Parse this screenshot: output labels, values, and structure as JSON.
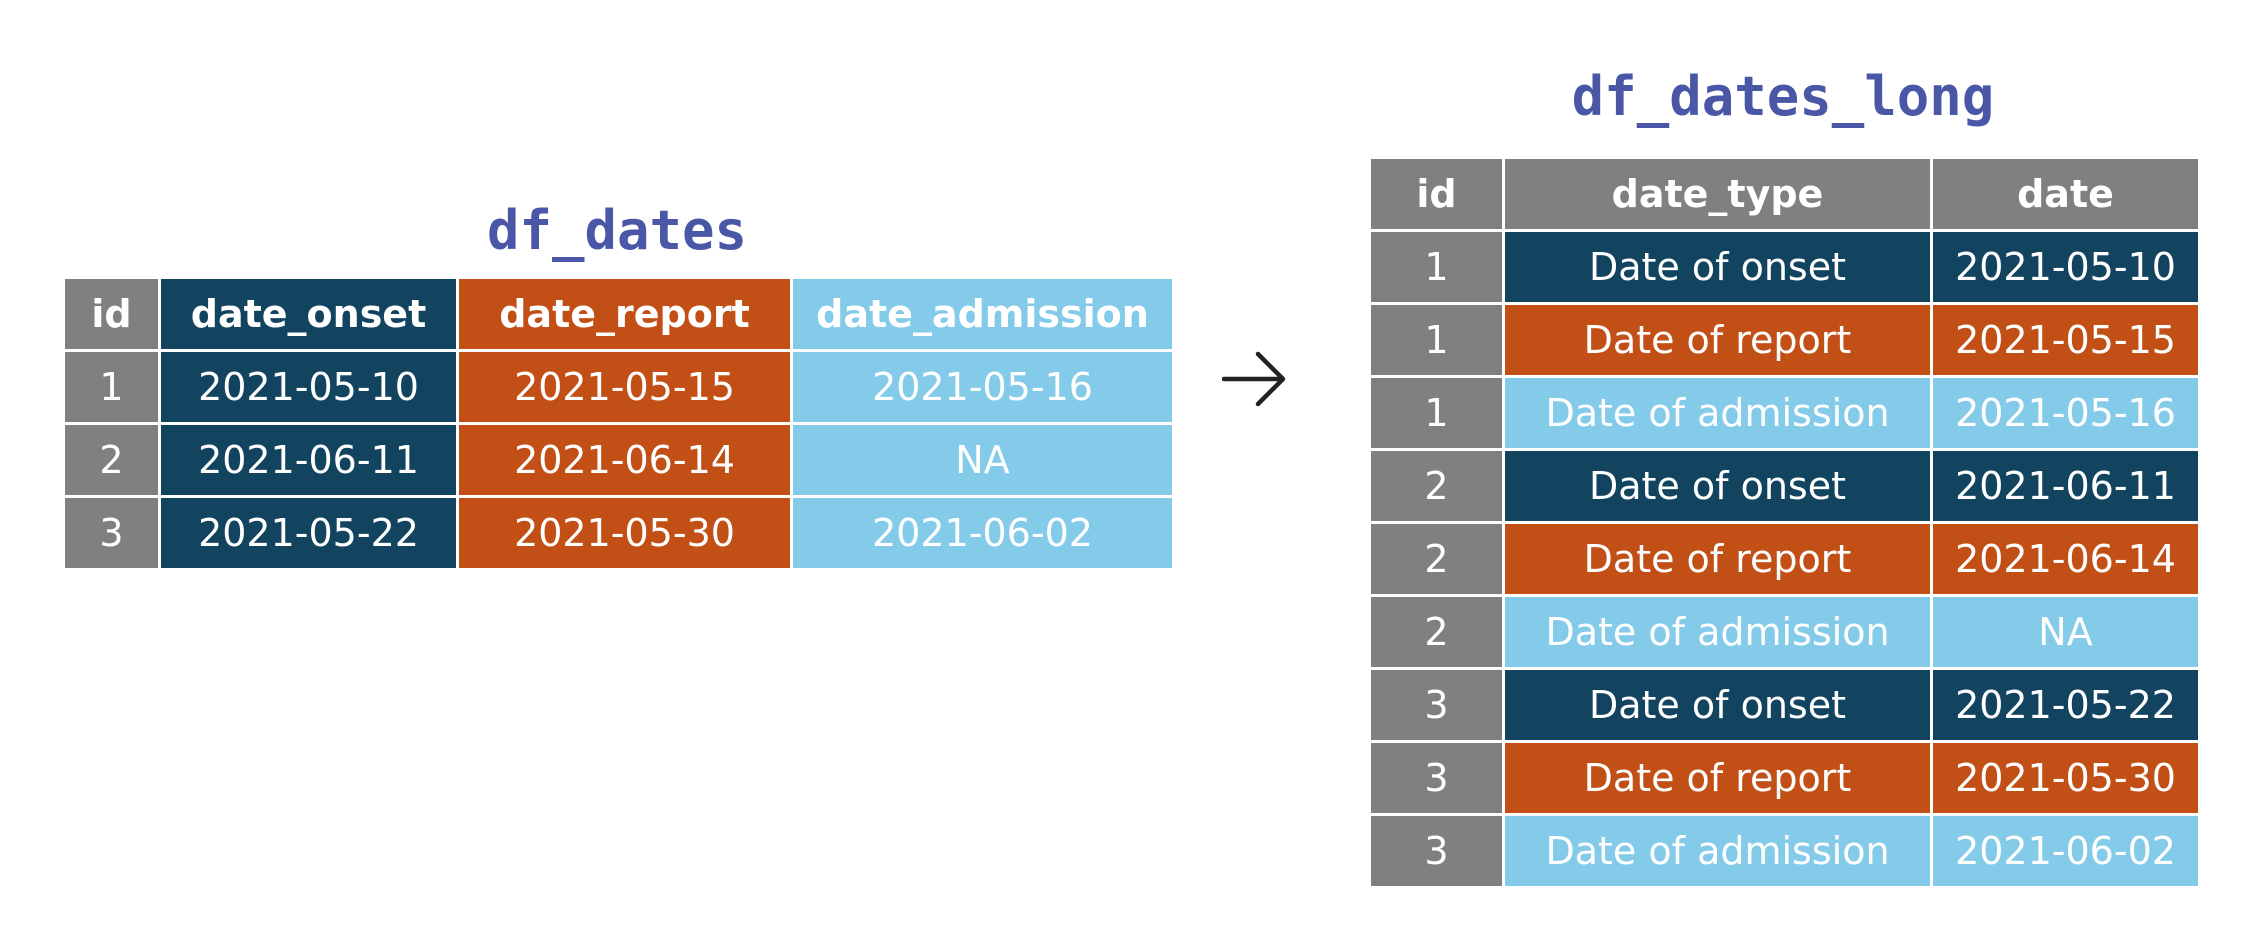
{
  "wide": {
    "title": "df_dates",
    "headers": {
      "id": "id",
      "onset": "date_onset",
      "report": "date_report",
      "admission": "date_admission"
    },
    "rows": [
      {
        "id": "1",
        "onset": "2021-05-10",
        "report": "2021-05-15",
        "admission": "2021-05-16"
      },
      {
        "id": "2",
        "onset": "2021-06-11",
        "report": "2021-06-14",
        "admission": "NA"
      },
      {
        "id": "3",
        "onset": "2021-05-22",
        "report": "2021-05-30",
        "admission": "2021-06-02"
      }
    ]
  },
  "long": {
    "title": "df_dates_long",
    "headers": {
      "id": "id",
      "date_type": "date_type",
      "date": "date"
    },
    "rows": [
      {
        "id": "1",
        "date_type": "Date of onset",
        "date": "2021-05-10"
      },
      {
        "id": "1",
        "date_type": "Date of report",
        "date": "2021-05-15"
      },
      {
        "id": "1",
        "date_type": "Date of admission",
        "date": "2021-05-16"
      },
      {
        "id": "2",
        "date_type": "Date of onset",
        "date": "2021-06-11"
      },
      {
        "id": "2",
        "date_type": "Date of report",
        "date": "2021-06-14"
      },
      {
        "id": "2",
        "date_type": "Date of admission",
        "date": "NA"
      },
      {
        "id": "3",
        "date_type": "Date of onset",
        "date": "2021-05-22"
      },
      {
        "id": "3",
        "date_type": "Date of report",
        "date": "2021-05-30"
      },
      {
        "id": "3",
        "date_type": "Date of admission",
        "date": "2021-06-02"
      }
    ]
  },
  "colors": {
    "id": "#808080",
    "onset": "#124460",
    "report": "#c24f15",
    "admission": "#84cbea",
    "title": "#4a56a6",
    "arrow": "#222222"
  },
  "arrow_icon": "arrow-right-icon"
}
